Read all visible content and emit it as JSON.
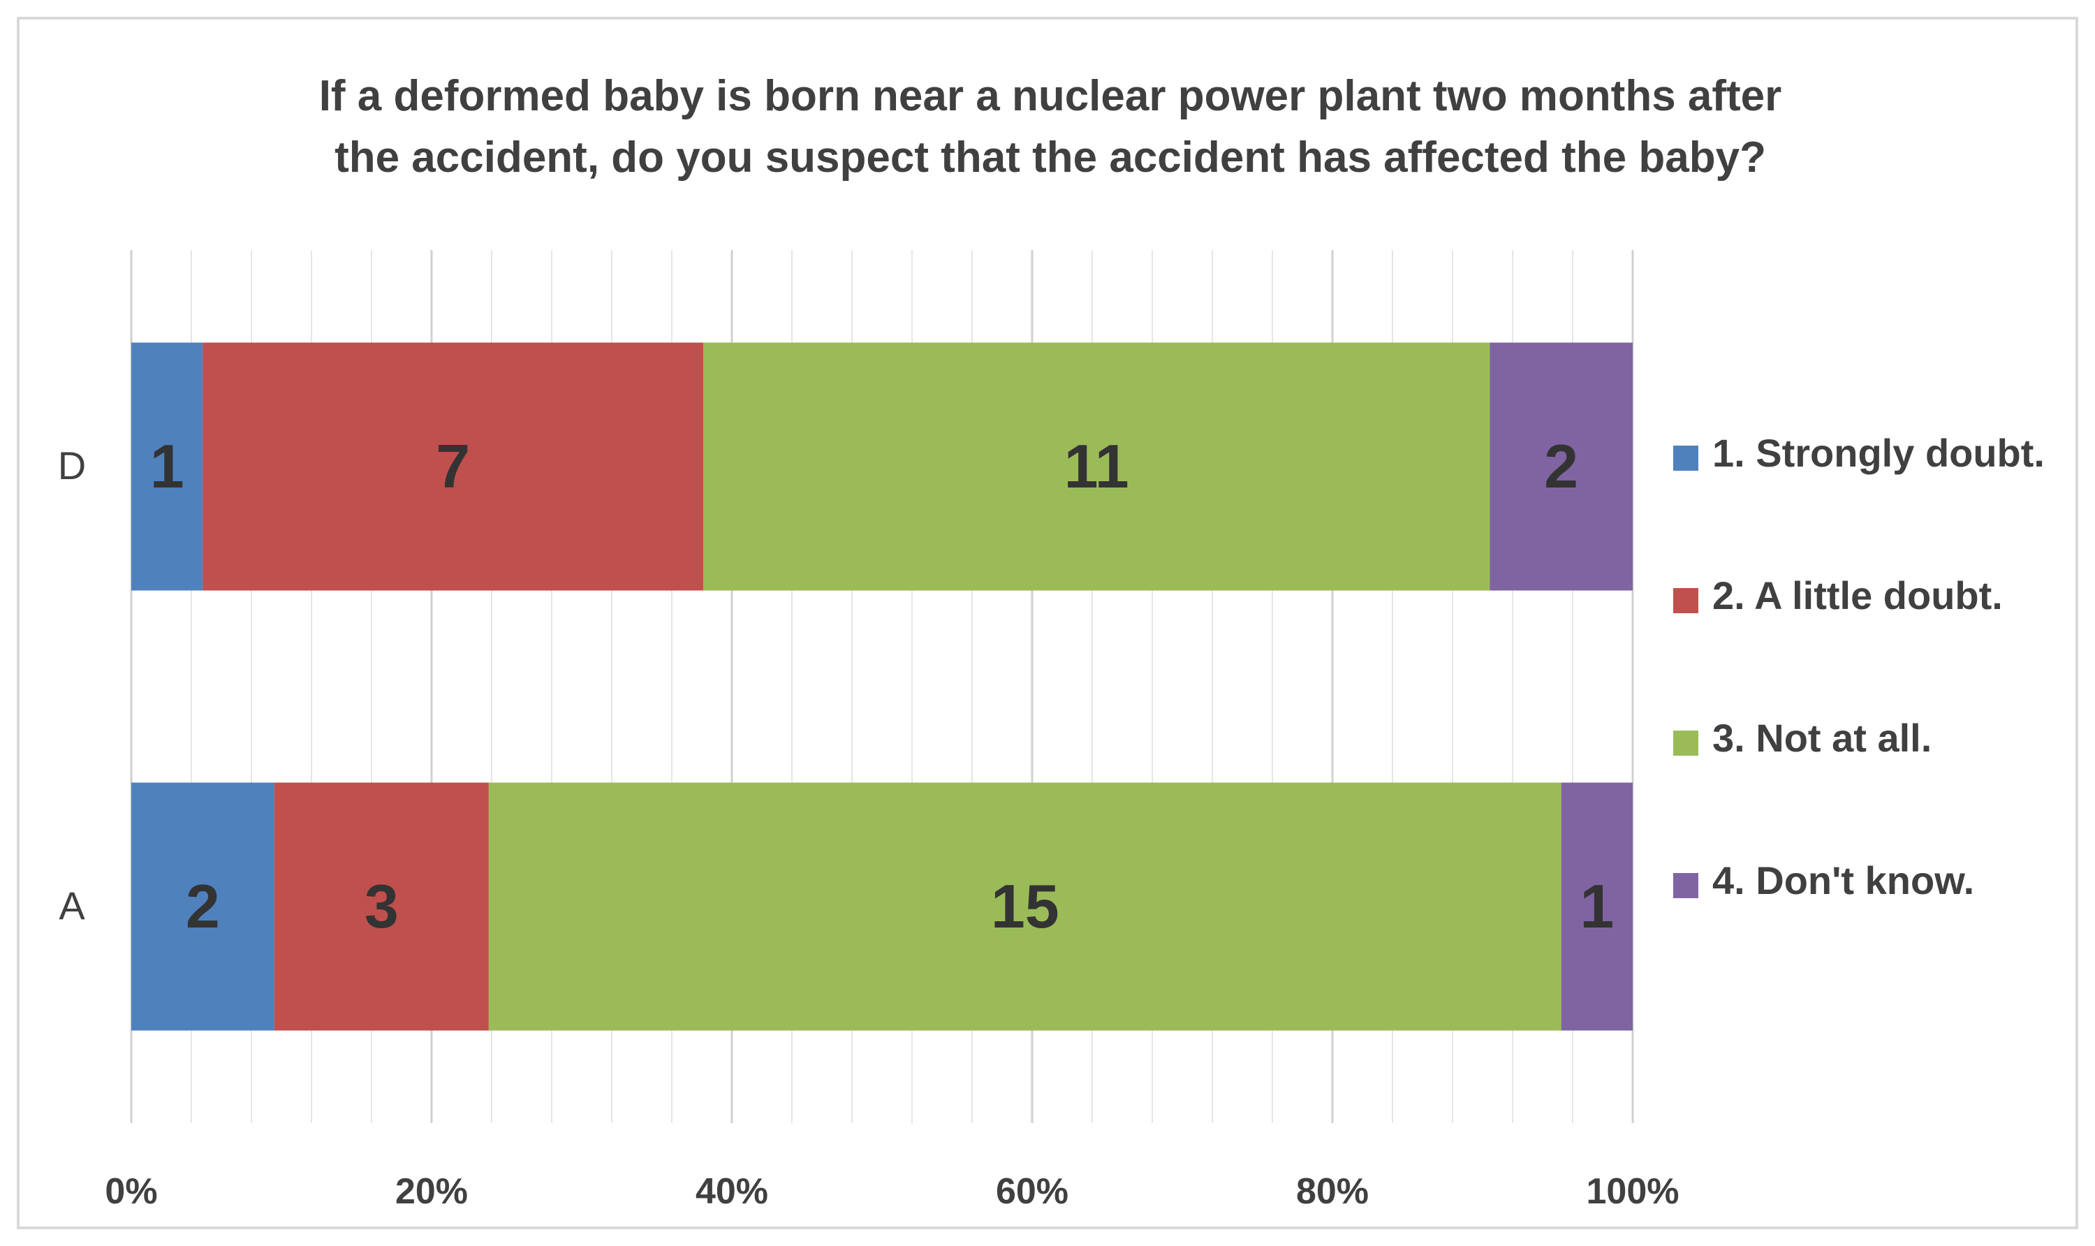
{
  "chart_data": {
    "type": "bar",
    "orientation": "horizontal",
    "stacked": "percent",
    "title_lines": [
      "If a deformed baby is born near a nuclear power plant two months after",
      "the accident,  do you suspect that the accident  has affected the baby?"
    ],
    "categories": [
      "D",
      "A"
    ],
    "series": [
      {
        "name": "1. Strongly doubt.",
        "color": "#4f81bd",
        "values": [
          1,
          2
        ]
      },
      {
        "name": "2. A little doubt.",
        "color": "#c0504d",
        "values": [
          7,
          3
        ]
      },
      {
        "name": "3. Not at all.",
        "color": "#9bbb59",
        "values": [
          11,
          15
        ]
      },
      {
        "name": "4. Don't know.",
        "color": "#8064a2",
        "values": [
          2,
          1
        ]
      }
    ],
    "xlim": [
      0,
      100
    ],
    "x_ticks": [
      0,
      20,
      40,
      60,
      80,
      100
    ],
    "x_tick_labels": [
      "0%",
      "20%",
      "40%",
      "60%",
      "80%",
      "100%"
    ],
    "gridlines": true,
    "legend_position": "right"
  }
}
